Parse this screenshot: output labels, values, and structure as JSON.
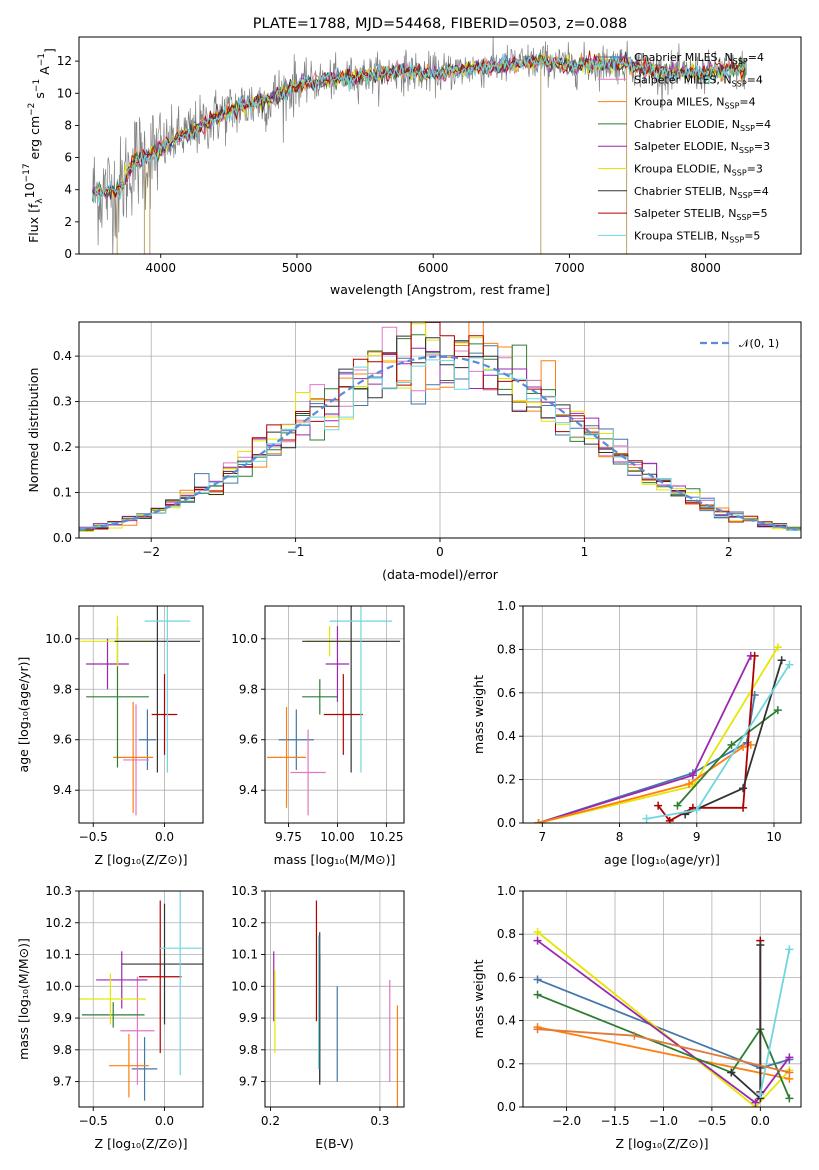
{
  "chart_data": [
    {
      "id": "spectrum",
      "type": "line",
      "title": "PLATE=1788, MJD=54468, FIBERID=0503, z=0.088",
      "xlabel": "wavelength [Angstrom, rest frame]",
      "ylabel": "Flux [f_λ10^{-17} erg cm^{-2} s^{-1} A^{-1}]",
      "ylabel_parts": {
        "a": "Flux [f",
        "b": "λ",
        "c": "10",
        "d": "−17",
        "e": " erg cm",
        "f": "−2",
        "g": " s",
        "h": "−1",
        "i": " A",
        "j": "−1",
        "k": "]"
      },
      "xlim": [
        3400,
        8700
      ],
      "ylim": [
        0,
        13.5
      ],
      "xticks": [
        4000,
        5000,
        6000,
        7000,
        8000
      ],
      "yticks": [
        0,
        2,
        4,
        6,
        8,
        10,
        12
      ],
      "legend_position": "right",
      "legend": [
        {
          "label": "Chabrier MILES, N",
          "sub": "SSP",
          "eq": "=4",
          "color": "#4477aa"
        },
        {
          "label": "Salpeter MILES, N",
          "sub": "SSP",
          "eq": "=4",
          "color": "#e377c2"
        },
        {
          "label": "Kroupa MILES, N",
          "sub": "SSP",
          "eq": "=4",
          "color": "#ff7f0e"
        },
        {
          "label": "Chabrier ELODIE, N",
          "sub": "SSP",
          "eq": "=4",
          "color": "#2e7d32"
        },
        {
          "label": "Salpeter ELODIE, N",
          "sub": "SSP",
          "eq": "=3",
          "color": "#9c27b0"
        },
        {
          "label": "Kroupa ELODIE, N",
          "sub": "SSP",
          "eq": "=3",
          "color": "#e6e600"
        },
        {
          "label": "Chabrier STELIB, N",
          "sub": "SSP",
          "eq": "=4",
          "color": "#333333"
        },
        {
          "label": "Salpeter STELIB, N",
          "sub": "SSP",
          "eq": "=5",
          "color": "#b00000"
        },
        {
          "label": "Kroupa STELIB, N",
          "sub": "SSP",
          "eq": "=5",
          "color": "#6fd6e0"
        }
      ],
      "continuum": {
        "x": [
          3500,
          3700,
          3800,
          3900,
          4000,
          4100,
          4200,
          4400,
          4600,
          4800,
          5000,
          5200,
          5400,
          5600,
          5800,
          6000,
          6200,
          6400,
          6600,
          6800,
          7000,
          7200,
          7400,
          7600,
          7800,
          8000,
          8200,
          8300
        ],
        "y": [
          3.8,
          4.0,
          5.8,
          6.0,
          6.5,
          7.2,
          7.5,
          8.5,
          9.2,
          9.6,
          10.5,
          10.8,
          11.0,
          11.2,
          11.4,
          11.2,
          11.5,
          11.6,
          11.8,
          12.0,
          11.7,
          11.8,
          11.9,
          11.4,
          11.2,
          11.3,
          11.5,
          11.5
        ]
      }
    },
    {
      "id": "residuals",
      "type": "line",
      "xlabel": "(data-model)/error",
      "ylabel": "Normed distribution",
      "xlim": [
        -2.5,
        2.5
      ],
      "ylim": [
        0,
        0.475
      ],
      "xticks": [
        -2,
        -1,
        0,
        1,
        2
      ],
      "yticks": [
        0.0,
        0.1,
        0.2,
        0.3,
        0.4
      ],
      "grid": true,
      "legend": [
        {
          "label": "𝒩(0, 1)",
          "style": "dashed",
          "color": "#5b8ad8"
        }
      ],
      "legend_position": "top-right",
      "bin_width": 0.1
    },
    {
      "id": "age-vs-Z",
      "type": "scatter",
      "xlabel": "Z [log₁₀(Z/Z⊙)]",
      "ylabel": "age  [log₁₀(age/yr)]",
      "xlim": [
        -0.6,
        0.27
      ],
      "ylim": [
        9.27,
        10.13
      ],
      "xticks": [
        -0.5,
        0.0
      ],
      "yticks": [
        9.4,
        9.6,
        9.8,
        10.0
      ],
      "grid": true,
      "points": [
        {
          "x": -0.12,
          "y": 9.6,
          "xerr": 0.06,
          "yerr": 0.12,
          "color": "#4477aa"
        },
        {
          "x": -0.2,
          "y": 9.52,
          "xerr": 0.09,
          "yerr": 0.22,
          "color": "#e377c2"
        },
        {
          "x": -0.22,
          "y": 9.53,
          "xerr": 0.14,
          "yerr": 0.22,
          "color": "#ff7f0e"
        },
        {
          "x": -0.33,
          "y": 9.77,
          "xerr": 0.22,
          "yerr": 0.28,
          "color": "#2e7d32"
        },
        {
          "x": -0.4,
          "y": 9.9,
          "xerr": 0.15,
          "yerr": 0.1,
          "color": "#9c27b0"
        },
        {
          "x": -0.33,
          "y": 9.99,
          "xerr": 0.26,
          "yerr": 0.1,
          "color": "#e6e600"
        },
        {
          "x": -0.05,
          "y": 9.99,
          "xerr": 0.3,
          "yerr": 0.52,
          "color": "#333333"
        },
        {
          "x": 0.0,
          "y": 9.7,
          "xerr": 0.09,
          "yerr": 0.16,
          "color": "#b00000"
        },
        {
          "x": 0.02,
          "y": 10.07,
          "xerr": 0.16,
          "yerr": 0.6,
          "color": "#6fd6e0"
        }
      ]
    },
    {
      "id": "age-vs-mass",
      "type": "scatter",
      "xlabel": "mass [log₁₀(M/M⊙)]",
      "xlim": [
        9.63,
        10.34
      ],
      "ylim": [
        9.27,
        10.13
      ],
      "xticks": [
        9.75,
        10.0,
        10.25
      ],
      "xticklabels": [
        "9.75",
        "10.00",
        "10.25"
      ],
      "yticks": [
        9.4,
        9.6,
        9.8,
        10.0
      ],
      "grid": true,
      "points": [
        {
          "x": 9.79,
          "y": 9.6,
          "xerr": 0.09,
          "yerr": 0.12,
          "color": "#4477aa"
        },
        {
          "x": 9.85,
          "y": 9.47,
          "xerr": 0.09,
          "yerr": 0.17,
          "color": "#e377c2"
        },
        {
          "x": 9.74,
          "y": 9.53,
          "xerr": 0.1,
          "yerr": 0.2,
          "color": "#ff7f0e"
        },
        {
          "x": 9.91,
          "y": 9.77,
          "xerr": 0.09,
          "yerr": 0.07,
          "color": "#2e7d32"
        },
        {
          "x": 10.0,
          "y": 9.9,
          "xerr": 0.06,
          "yerr": 0.15,
          "color": "#9c27b0"
        },
        {
          "x": 9.96,
          "y": 9.99,
          "xerr": 0.12,
          "yerr": 0.06,
          "color": "#e6e600"
        },
        {
          "x": 10.07,
          "y": 9.99,
          "xerr": 0.25,
          "yerr": 0.52,
          "color": "#333333"
        },
        {
          "x": 10.03,
          "y": 9.7,
          "xerr": 0.1,
          "yerr": 0.16,
          "color": "#b00000"
        },
        {
          "x": 10.12,
          "y": 10.07,
          "xerr": 0.16,
          "yerr": 0.6,
          "color": "#6fd6e0"
        }
      ]
    },
    {
      "id": "weight-vs-age",
      "type": "line",
      "xlabel": "age  [log₁₀(age/yr)]",
      "ylabel": "mass weight",
      "xlim": [
        6.75,
        10.35
      ],
      "ylim": [
        0,
        1.0
      ],
      "xticks": [
        7,
        8,
        9,
        10
      ],
      "yticks": [
        0.0,
        0.2,
        0.4,
        0.6,
        0.8,
        1.0
      ],
      "grid": true,
      "series": [
        {
          "color": "#4477aa",
          "x": [
            6.95,
            8.95,
            9.65,
            9.75
          ],
          "y": [
            0.0,
            0.23,
            0.37,
            0.59
          ]
        },
        {
          "color": "#9c27b0",
          "x": [
            6.95,
            8.95,
            9.7
          ],
          "y": [
            0.0,
            0.22,
            0.77
          ]
        },
        {
          "color": "#e6e600",
          "x": [
            6.95,
            8.95,
            10.05
          ],
          "y": [
            0.0,
            0.17,
            0.81
          ]
        },
        {
          "color": "#ff7f0e",
          "x": [
            6.95,
            8.9,
            9.6,
            9.7
          ],
          "y": [
            0.0,
            0.18,
            0.35,
            0.36
          ]
        },
        {
          "color": "#2e7d32",
          "x": [
            8.75,
            9.45,
            10.05
          ],
          "y": [
            0.08,
            0.36,
            0.52
          ]
        },
        {
          "color": "#b00000",
          "x": [
            8.5,
            8.65,
            8.95,
            9.6,
            9.75
          ],
          "y": [
            0.08,
            0.01,
            0.07,
            0.07,
            0.77
          ]
        },
        {
          "color": "#333333",
          "x": [
            8.85,
            9.6,
            10.1
          ],
          "y": [
            0.04,
            0.16,
            0.75
          ]
        },
        {
          "color": "#6fd6e0",
          "x": [
            8.35,
            9.0,
            10.2
          ],
          "y": [
            0.02,
            0.06,
            0.73
          ]
        }
      ]
    },
    {
      "id": "mass-vs-Z",
      "type": "scatter",
      "xlabel": "Z [log₁₀(Z/Z⊙)]",
      "ylabel": "mass [log₁₀(M/M⊙)]",
      "xlim": [
        -0.6,
        0.27
      ],
      "ylim": [
        9.62,
        10.3
      ],
      "xticks": [
        -0.5,
        0.0
      ],
      "yticks": [
        9.7,
        9.8,
        9.9,
        10.0,
        10.1,
        10.2,
        10.3
      ],
      "grid": true,
      "points": [
        {
          "x": -0.14,
          "y": 9.74,
          "xerr": 0.09,
          "yerr": 0.1,
          "color": "#4477aa"
        },
        {
          "x": -0.19,
          "y": 9.86,
          "xerr": 0.12,
          "yerr": 0.17,
          "color": "#e377c2"
        },
        {
          "x": -0.25,
          "y": 9.75,
          "xerr": 0.14,
          "yerr": 0.1,
          "color": "#ff7f0e"
        },
        {
          "x": -0.36,
          "y": 9.91,
          "xerr": 0.22,
          "yerr": 0.04,
          "color": "#2e7d32"
        },
        {
          "x": -0.3,
          "y": 10.02,
          "xerr": 0.18,
          "yerr": 0.09,
          "color": "#9c27b0"
        },
        {
          "x": -0.38,
          "y": 9.96,
          "xerr": 0.25,
          "yerr": 0.08,
          "color": "#e6e600"
        },
        {
          "x": 0.0,
          "y": 10.07,
          "xerr": 0.3,
          "yerr": 0.19,
          "color": "#333333"
        },
        {
          "x": -0.03,
          "y": 10.03,
          "xerr": 0.15,
          "yerr": 0.24,
          "color": "#b00000"
        },
        {
          "x": 0.11,
          "y": 10.12,
          "xerr": 0.15,
          "yerr": 0.4,
          "color": "#6fd6e0"
        }
      ]
    },
    {
      "id": "mass-vs-EBV",
      "type": "scatter",
      "xlabel": "E(B-V)",
      "xlim": [
        0.195,
        0.322
      ],
      "ylim": [
        9.62,
        10.3
      ],
      "xticks": [
        0.2,
        0.3
      ],
      "xticklabels": [
        "0.2",
        "0.3"
      ],
      "yticks": [
        9.7,
        9.8,
        9.9,
        10.0,
        10.1,
        10.2,
        10.3
      ],
      "grid": true,
      "points": [
        {
          "x": 0.261,
          "y": 9.85,
          "yerr": 0.15,
          "color": "#4477aa"
        },
        {
          "x": 0.309,
          "y": 9.86,
          "yerr": 0.16,
          "color": "#e377c2"
        },
        {
          "x": 0.316,
          "y": 9.78,
          "yerr": 0.16,
          "color": "#ff7f0e"
        },
        {
          "x": 0.245,
          "y": 9.9,
          "yerr": 0.2,
          "color": "#2e7d32"
        },
        {
          "x": 0.203,
          "y": 10.0,
          "yerr": 0.11,
          "color": "#9c27b0"
        },
        {
          "x": 0.204,
          "y": 9.92,
          "yerr": 0.13,
          "color": "#e6e600"
        },
        {
          "x": 0.245,
          "y": 9.93,
          "yerr": 0.24,
          "color": "#333333"
        },
        {
          "x": 0.242,
          "y": 10.08,
          "yerr": 0.19,
          "color": "#b00000"
        },
        {
          "x": 0.244,
          "y": 9.95,
          "yerr": 0.21,
          "color": "#6fd6e0"
        }
      ]
    },
    {
      "id": "weight-vs-Z",
      "type": "line",
      "xlabel": "Z [log₁₀(Z/Z⊙)]",
      "ylabel": "mass weight",
      "xlim": [
        -2.45,
        0.42
      ],
      "ylim": [
        0,
        1.0
      ],
      "xticks": [
        -2.0,
        -1.5,
        -1.0,
        -0.5,
        0.0
      ],
      "xticklabels": [
        "−2.0",
        "−1.5",
        "−1.0",
        "−0.5",
        "0.0"
      ],
      "yticks": [
        0.0,
        0.2,
        0.4,
        0.6,
        0.8,
        1.0
      ],
      "grid": true,
      "series": [
        {
          "color": "#4477aa",
          "x": [
            -2.3,
            0.0,
            0.3
          ],
          "y": [
            0.59,
            0.18,
            0.22
          ]
        },
        {
          "color": "#ff7f0e",
          "x": [
            -2.3,
            0.3
          ],
          "y": [
            0.37,
            0.13
          ]
        },
        {
          "color": "#e6e600",
          "x": [
            -2.3,
            -0.05,
            0.3
          ],
          "y": [
            0.81,
            0.0,
            0.17
          ]
        },
        {
          "color": "#9c27b0",
          "x": [
            -2.3,
            -0.05,
            0.3
          ],
          "y": [
            0.77,
            0.02,
            0.23
          ]
        },
        {
          "color": "#2e7d32",
          "x": [
            -2.3,
            -0.3,
            0.0,
            0.3
          ],
          "y": [
            0.52,
            0.16,
            0.36,
            0.04
          ]
        },
        {
          "color": "#b00000",
          "x": [
            0.0,
            0.0
          ],
          "y": [
            0.07,
            0.77
          ]
        },
        {
          "color": "#333333",
          "x": [
            -0.3,
            0.0,
            0.0
          ],
          "y": [
            0.16,
            0.04,
            0.75
          ]
        },
        {
          "color": "#6fd6e0",
          "x": [
            0.0,
            0.3
          ],
          "y": [
            0.06,
            0.73
          ]
        },
        {
          "color": "#e07b39",
          "x": [
            -2.3,
            -1.3,
            0.3
          ],
          "y": [
            0.36,
            0.33,
            0.16
          ]
        }
      ]
    }
  ]
}
